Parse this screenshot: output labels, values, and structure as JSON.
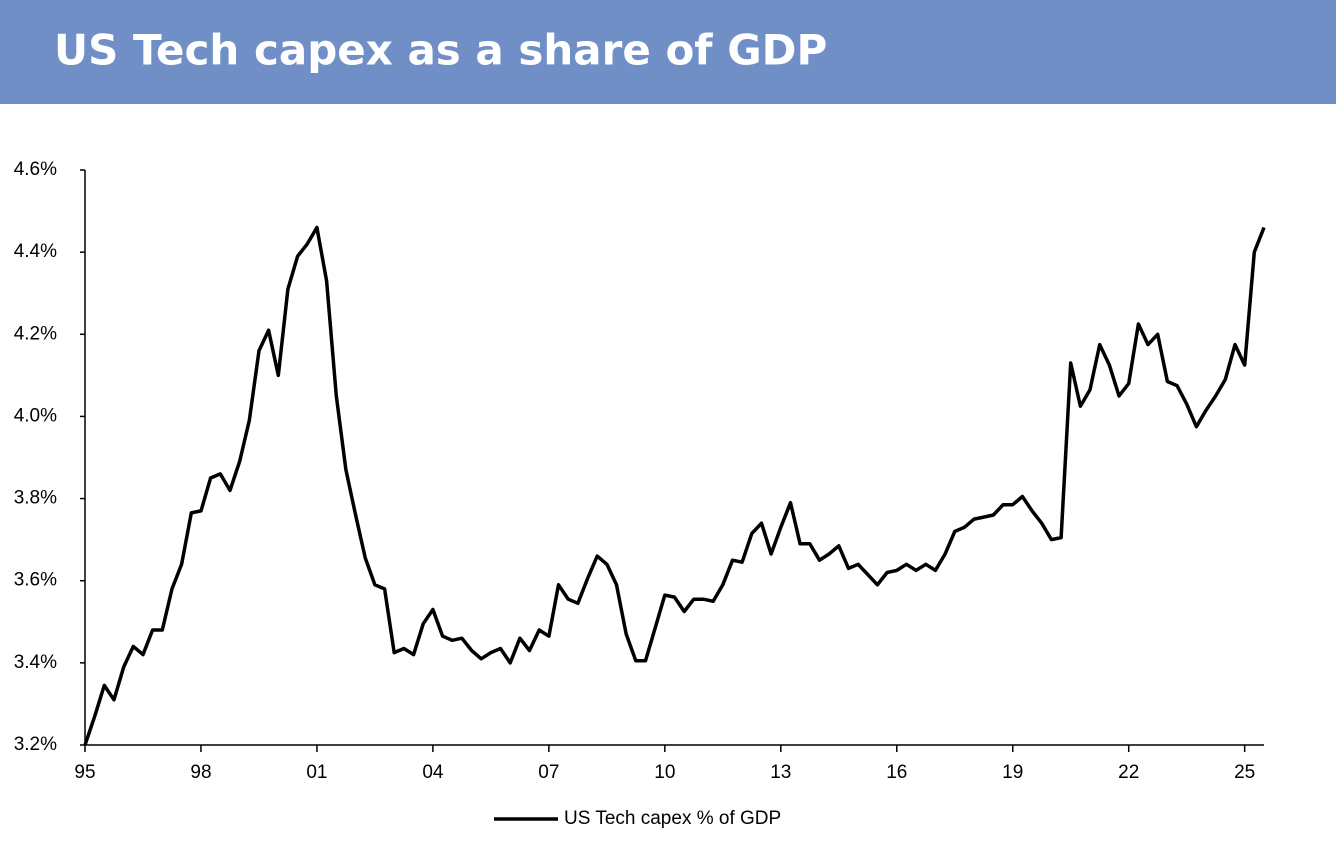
{
  "chart_data": {
    "type": "line",
    "title": "US Tech capex as a share of GDP",
    "x": [
      1995,
      1995.25,
      1995.5,
      1995.75,
      1996,
      1996.25,
      1996.5,
      1996.75,
      1997,
      1997.25,
      1997.5,
      1997.75,
      1998,
      1998.25,
      1998.5,
      1998.75,
      1999,
      1999.25,
      1999.5,
      1999.75,
      2000,
      2000.25,
      2000.5,
      2000.75,
      2001,
      2001.25,
      2001.5,
      2001.75,
      2002,
      2002.25,
      2002.5,
      2002.75,
      2003,
      2003.25,
      2003.5,
      2003.75,
      2004,
      2004.25,
      2004.5,
      2004.75,
      2005,
      2005.25,
      2005.5,
      2005.75,
      2006,
      2006.25,
      2006.5,
      2006.75,
      2007,
      2007.25,
      2007.5,
      2007.75,
      2008,
      2008.25,
      2008.5,
      2008.75,
      2009,
      2009.25,
      2009.5,
      2009.75,
      2010,
      2010.25,
      2010.5,
      2010.75,
      2011,
      2011.25,
      2011.5,
      2011.75,
      2012,
      2012.25,
      2012.5,
      2012.75,
      2013,
      2013.25,
      2013.5,
      2013.75,
      2014,
      2014.25,
      2014.5,
      2014.75,
      2015,
      2015.25,
      2015.5,
      2015.75,
      2016,
      2016.25,
      2016.5,
      2016.75,
      2017,
      2017.25,
      2017.5,
      2017.75,
      2018,
      2018.25,
      2018.5,
      2018.75,
      2019,
      2019.25,
      2019.5,
      2019.75,
      2020,
      2020.25,
      2020.5,
      2020.75,
      2021,
      2021.25,
      2021.5,
      2021.75,
      2022,
      2022.25,
      2022.5,
      2022.75,
      2023,
      2023.25,
      2023.5,
      2023.75,
      2024,
      2024.25,
      2024.5,
      2024.75,
      2025,
      2025.25,
      2025.5
    ],
    "series": [
      {
        "name": "US Tech capex % of GDP",
        "color": "#000000",
        "values": [
          3.2,
          3.27,
          3.345,
          3.31,
          3.39,
          3.44,
          3.42,
          3.48,
          3.48,
          3.58,
          3.64,
          3.765,
          3.77,
          3.85,
          3.86,
          3.82,
          3.89,
          3.99,
          4.16,
          4.21,
          4.1,
          4.31,
          4.39,
          4.42,
          4.46,
          4.33,
          4.05,
          3.87,
          3.76,
          3.655,
          3.59,
          3.58,
          3.425,
          3.435,
          3.42,
          3.495,
          3.53,
          3.465,
          3.455,
          3.46,
          3.43,
          3.41,
          3.425,
          3.435,
          3.4,
          3.46,
          3.43,
          3.48,
          3.465,
          3.59,
          3.555,
          3.545,
          3.605,
          3.66,
          3.64,
          3.59,
          3.47,
          3.405,
          3.405,
          3.485,
          3.565,
          3.56,
          3.525,
          3.555,
          3.555,
          3.55,
          3.59,
          3.65,
          3.645,
          3.715,
          3.74,
          3.665,
          3.73,
          3.79,
          3.69,
          3.69,
          3.65,
          3.665,
          3.685,
          3.63,
          3.64,
          3.615,
          3.59,
          3.62,
          3.625,
          3.64,
          3.625,
          3.64,
          3.625,
          3.665,
          3.72,
          3.73,
          3.75,
          3.755,
          3.76,
          3.785,
          3.785,
          3.805,
          3.77,
          3.74,
          3.7,
          3.705,
          4.13,
          4.025,
          4.065,
          4.175,
          4.125,
          4.05,
          4.08,
          4.225,
          4.175,
          4.2,
          4.085,
          4.075,
          4.03,
          3.975,
          4.015,
          4.05,
          4.09,
          4.175,
          4.125,
          4.4,
          4.46
        ]
      }
    ],
    "xlim": [
      1995,
      2025.5
    ],
    "xticks": [
      {
        "value": 1995,
        "label": "95"
      },
      {
        "value": 1998,
        "label": "98"
      },
      {
        "value": 2001,
        "label": "01"
      },
      {
        "value": 2004,
        "label": "04"
      },
      {
        "value": 2007,
        "label": "07"
      },
      {
        "value": 2010,
        "label": "10"
      },
      {
        "value": 2013,
        "label": "13"
      },
      {
        "value": 2016,
        "label": "16"
      },
      {
        "value": 2019,
        "label": "19"
      },
      {
        "value": 2022,
        "label": "22"
      },
      {
        "value": 2025,
        "label": "25"
      }
    ],
    "ylim": [
      3.2,
      4.6
    ],
    "yticks": [
      {
        "value": 3.2,
        "label": "3.2%"
      },
      {
        "value": 3.4,
        "label": "3.4%"
      },
      {
        "value": 3.6,
        "label": "3.6%"
      },
      {
        "value": 3.8,
        "label": "3.8%"
      },
      {
        "value": 4.0,
        "label": "4.0%"
      },
      {
        "value": 4.2,
        "label": "4.2%"
      },
      {
        "value": 4.4,
        "label": "4.4%"
      },
      {
        "value": 4.6,
        "label": "4.6%"
      }
    ],
    "grid": false
  }
}
